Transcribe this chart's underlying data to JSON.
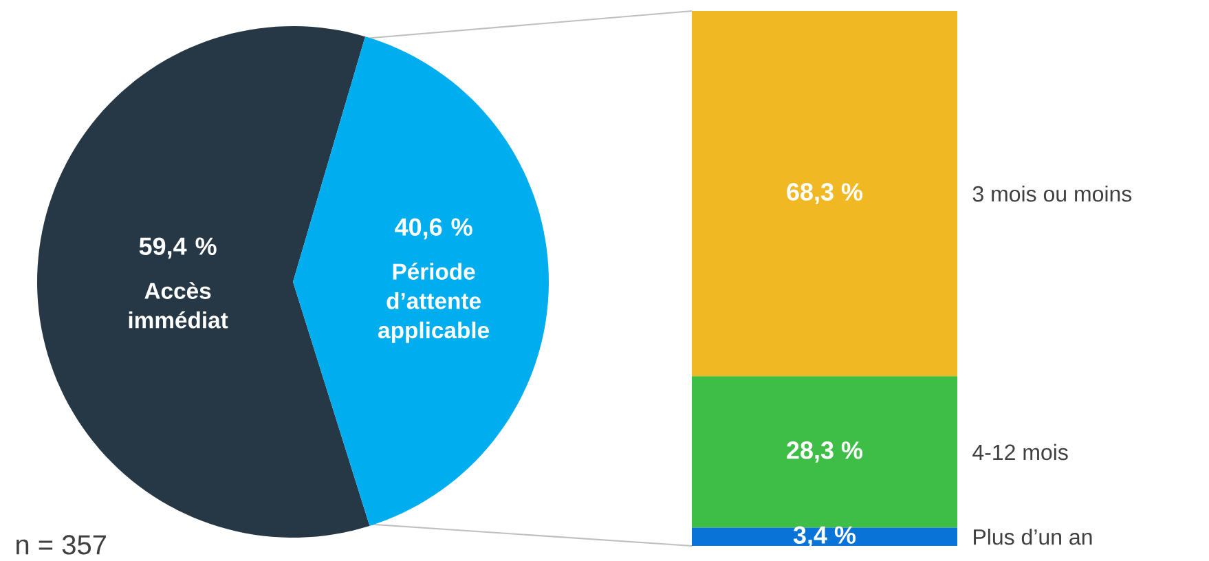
{
  "chart_data": [
    {
      "type": "pie",
      "categories": [
        "Accès immédiat",
        "Période d’attente applicable"
      ],
      "values": [
        59.4,
        40.6
      ],
      "colors": [
        "#263746",
        "#00aeef"
      ],
      "value_labels": [
        "59,4 %",
        "40,6 %"
      ],
      "annotations": [
        "n = 357"
      ]
    },
    {
      "type": "bar",
      "stacked": true,
      "categories": [
        null
      ],
      "series": [
        {
          "name": "Plus d’un an",
          "color": "#0a73d8",
          "values": [
            3.4
          ],
          "value_labels": [
            "3,4 %"
          ]
        },
        {
          "name": "4-12 mois",
          "color": "#3fbe47",
          "values": [
            28.3
          ],
          "value_labels": [
            "28,3 %"
          ]
        },
        {
          "name": "3 mois ou moins",
          "color": "#f0b823",
          "values": [
            68.3
          ],
          "value_labels": [
            "68,3 %"
          ]
        }
      ]
    }
  ]
}
